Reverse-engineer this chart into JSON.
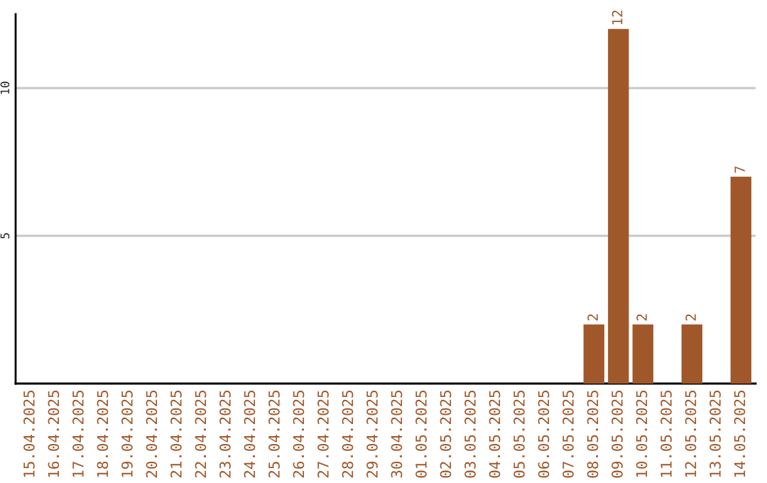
{
  "chart_data": {
    "type": "bar",
    "categories": [
      "15.04.2025",
      "16.04.2025",
      "17.04.2025",
      "18.04.2025",
      "19.04.2025",
      "20.04.2025",
      "21.04.2025",
      "22.04.2025",
      "23.04.2025",
      "24.04.2025",
      "25.04.2025",
      "26.04.2025",
      "27.04.2025",
      "28.04.2025",
      "29.04.2025",
      "30.04.2025",
      "01.05.2025",
      "02.05.2025",
      "03.05.2025",
      "04.05.2025",
      "05.05.2025",
      "06.05.2025",
      "07.05.2025",
      "08.05.2025",
      "09.05.2025",
      "10.05.2025",
      "11.05.2025",
      "12.05.2025",
      "13.05.2025",
      "14.05.2025"
    ],
    "values": [
      0,
      0,
      0,
      0,
      0,
      0,
      0,
      0,
      0,
      0,
      0,
      0,
      0,
      0,
      0,
      0,
      0,
      0,
      0,
      0,
      0,
      0,
      0,
      2,
      12,
      2,
      0,
      2,
      0,
      7
    ],
    "value_labels": [
      null,
      null,
      null,
      null,
      null,
      null,
      null,
      null,
      null,
      null,
      null,
      null,
      null,
      null,
      null,
      null,
      null,
      null,
      null,
      null,
      null,
      null,
      null,
      "2",
      "12",
      "2",
      null,
      "2",
      null,
      "7"
    ],
    "color": "#a0582a",
    "ylim": [
      0,
      12.5
    ],
    "yticks": [
      5,
      10
    ],
    "grid": "y"
  }
}
